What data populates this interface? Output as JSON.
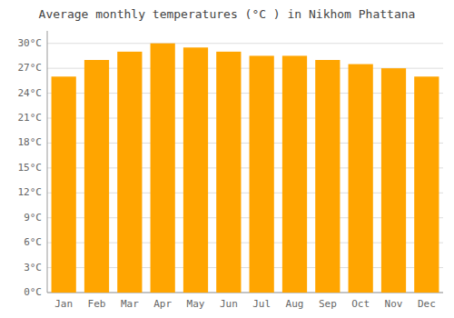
{
  "chart_data": {
    "type": "bar",
    "title": "Average monthly temperatures (°C ) in Nikhom Phattana",
    "categories": [
      "Jan",
      "Feb",
      "Mar",
      "Apr",
      "May",
      "Jun",
      "Jul",
      "Aug",
      "Sep",
      "Oct",
      "Nov",
      "Dec"
    ],
    "values": [
      26.0,
      28.0,
      29.0,
      30.0,
      29.5,
      29.0,
      28.5,
      28.5,
      28.0,
      27.5,
      27.0,
      26.0
    ],
    "color": "#FFA500",
    "ylim": [
      0,
      31.5
    ],
    "yticks": [
      {
        "value": 0,
        "label": "0°C"
      },
      {
        "value": 3,
        "label": "3°C"
      },
      {
        "value": 6,
        "label": "6°C"
      },
      {
        "value": 9,
        "label": "9°C"
      },
      {
        "value": 12,
        "label": "12°C"
      },
      {
        "value": 15,
        "label": "15°C"
      },
      {
        "value": 18,
        "label": "18°C"
      },
      {
        "value": 21,
        "label": "21°C"
      },
      {
        "value": 24,
        "label": "24°C"
      },
      {
        "value": 27,
        "label": "27°C"
      },
      {
        "value": 30,
        "label": "30°C"
      }
    ],
    "grid": true
  }
}
